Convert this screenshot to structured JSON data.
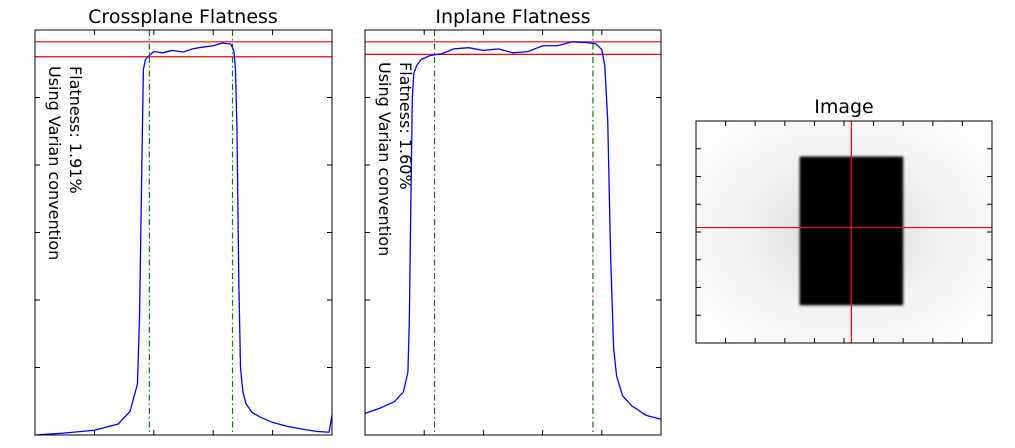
{
  "colors": {
    "profile": "#0000ff",
    "flatness_lines": "#ff0000",
    "field_edges": "#008000",
    "crosshair": "#ff0000",
    "axes": "#000000"
  },
  "chart_data": [
    {
      "type": "line",
      "title": "Crossplane Flatness",
      "xlabel": "",
      "ylabel": "",
      "ylim": [
        0,
        1.03
      ],
      "xlim": [
        0,
        1
      ],
      "annotation_line1": "Flatness: 1.91%",
      "annotation_line2": "Using Varian convention",
      "hlines": [
        1.0,
        0.962
      ],
      "vlines": [
        0.385,
        0.665
      ],
      "profile": {
        "x": [
          0.0,
          0.1,
          0.2,
          0.28,
          0.32,
          0.345,
          0.352,
          0.36,
          0.365,
          0.372,
          0.38,
          0.4,
          0.43,
          0.46,
          0.5,
          0.53,
          0.56,
          0.6,
          0.63,
          0.66,
          0.67,
          0.675,
          0.68,
          0.686,
          0.692,
          0.7,
          0.71,
          0.73,
          0.76,
          0.8,
          0.85,
          0.9,
          0.95,
          0.99,
          1.0
        ],
        "y": [
          0.0,
          0.005,
          0.012,
          0.028,
          0.06,
          0.13,
          0.3,
          0.7,
          0.93,
          0.955,
          0.962,
          0.975,
          0.972,
          0.978,
          0.974,
          0.982,
          0.986,
          0.99,
          0.997,
          0.994,
          0.975,
          0.93,
          0.78,
          0.4,
          0.17,
          0.11,
          0.08,
          0.058,
          0.045,
          0.032,
          0.022,
          0.015,
          0.009,
          0.007,
          0.05
        ]
      }
    },
    {
      "type": "line",
      "title": "Inplane Flatness",
      "xlabel": "",
      "ylabel": "",
      "ylim": [
        0,
        1.03
      ],
      "xlim": [
        0,
        1
      ],
      "annotation_line1": "Flatness: 1.60%",
      "annotation_line2": "Using Varian convention",
      "hlines": [
        1.0,
        0.968
      ],
      "vlines": [
        0.235,
        0.77
      ],
      "profile": {
        "x": [
          0.0,
          0.05,
          0.1,
          0.13,
          0.145,
          0.15,
          0.155,
          0.16,
          0.165,
          0.175,
          0.19,
          0.22,
          0.26,
          0.3,
          0.35,
          0.4,
          0.45,
          0.5,
          0.55,
          0.6,
          0.65,
          0.7,
          0.75,
          0.78,
          0.8,
          0.81,
          0.82,
          0.83,
          0.84,
          0.85,
          0.87,
          0.9,
          0.95,
          1.0
        ],
        "y": [
          0.055,
          0.068,
          0.085,
          0.11,
          0.16,
          0.3,
          0.6,
          0.86,
          0.92,
          0.94,
          0.955,
          0.965,
          0.97,
          0.982,
          0.985,
          0.978,
          0.982,
          0.972,
          0.975,
          0.99,
          0.99,
          1.0,
          0.998,
          0.995,
          0.98,
          0.94,
          0.8,
          0.45,
          0.22,
          0.15,
          0.1,
          0.075,
          0.05,
          0.04
        ]
      }
    },
    {
      "type": "heatmap",
      "title": "Image",
      "xlabel": "",
      "ylabel": "",
      "field_region": {
        "x": [
          0.35,
          0.7
        ],
        "y": [
          0.16,
          0.83
        ]
      },
      "crosshair": {
        "x": 0.525,
        "y": 0.48
      }
    }
  ]
}
